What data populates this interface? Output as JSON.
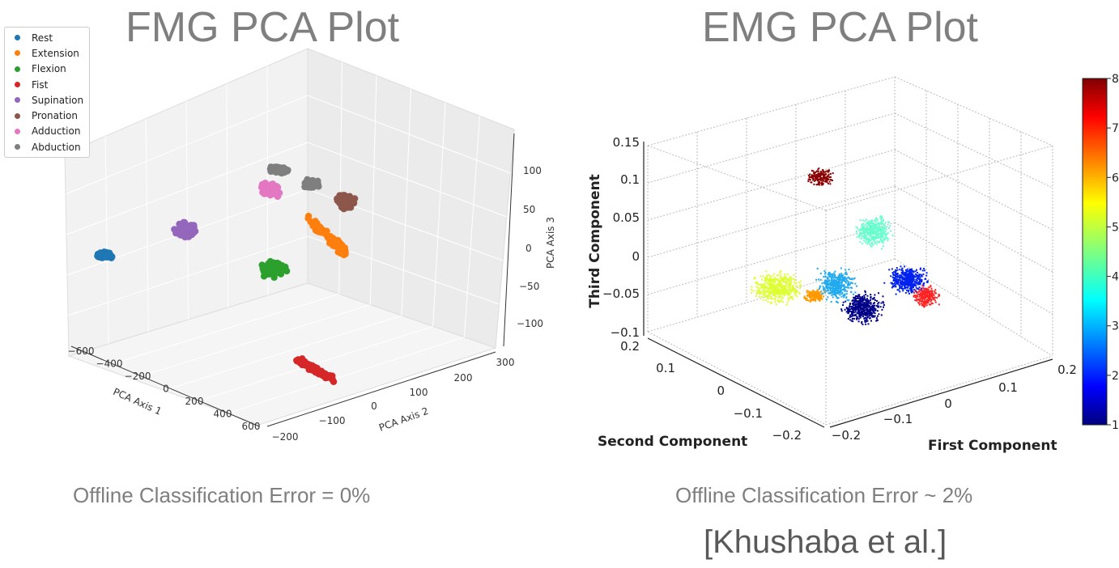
{
  "titles": {
    "left": "FMG PCA Plot",
    "right": "EMG PCA Plot"
  },
  "captions": {
    "left": "Offline Classification Error = 0%",
    "right": "Offline Classification Error ~ 2%",
    "citation": "[Khushaba et al.]"
  },
  "chart_data": [
    {
      "type": "scatter",
      "projection": "3d",
      "title": "FMG PCA Plot",
      "xlabel": "PCA Axis 1",
      "ylabel": "PCA Axis 2",
      "zlabel": "PCA Axis 3",
      "x_ticks": [
        "−600",
        "−400",
        "−200",
        "0",
        "200",
        "400",
        "600"
      ],
      "y_ticks": [
        "−200",
        "−100",
        "0",
        "100",
        "200",
        "300"
      ],
      "z_ticks": [
        "100",
        "50",
        "0",
        "−50",
        "−100"
      ],
      "legend_position": "top-left",
      "grid": true,
      "series": [
        {
          "name": "Rest",
          "color": "#1f77b4",
          "center": [
            -600,
            0,
            0
          ]
        },
        {
          "name": "Extension",
          "color": "#ff7f0e",
          "center": [
            300,
            150,
            10
          ]
        },
        {
          "name": "Flexion",
          "color": "#2ca02c",
          "center": [
            100,
            -50,
            -40
          ]
        },
        {
          "name": "Fist",
          "color": "#d62728",
          "center": [
            450,
            -150,
            -90
          ]
        },
        {
          "name": "Supination",
          "color": "#9467bd",
          "center": [
            -300,
            50,
            30
          ]
        },
        {
          "name": "Pronation",
          "color": "#8c564b",
          "center": [
            250,
            280,
            70
          ]
        },
        {
          "name": "Adduction",
          "color": "#e377c2",
          "center": [
            -100,
            150,
            80
          ]
        },
        {
          "name": "Abduction",
          "color": "#7f7f7f",
          "center": [
            0,
            250,
            110
          ]
        }
      ]
    },
    {
      "type": "scatter",
      "projection": "3d",
      "title": "EMG PCA Plot",
      "xlabel": "First Component",
      "ylabel": "Second Component",
      "zlabel": "Third Component",
      "x_ticks": [
        "−0.2",
        "−0.1",
        "0",
        "0.1",
        "0.2"
      ],
      "y_ticks": [
        "0.2",
        "0.1",
        "0",
        "−0.1",
        "−0.2"
      ],
      "z_ticks": [
        "0.15",
        "0.1",
        "0.05",
        "0",
        "−0.05",
        "−0.1"
      ],
      "colorbar": {
        "min": 1,
        "max": 8,
        "ticks": [
          "8",
          "7",
          "6",
          "5",
          "4",
          "3",
          "2",
          "1"
        ],
        "colormap": "jet"
      },
      "grid": true,
      "series": [
        {
          "label_value": 8,
          "color": "#8b0000",
          "center": [
            -0.05,
            0.15,
            0.1
          ]
        },
        {
          "label_value": 4,
          "color": "#66ffcc",
          "center": [
            0.05,
            0.0,
            0.03
          ]
        },
        {
          "label_value": 5,
          "color": "#ddff33",
          "center": [
            -0.15,
            0.1,
            -0.04
          ]
        },
        {
          "label_value": 3.5,
          "color": "#22aaee",
          "center": [
            -0.05,
            0.05,
            -0.04
          ]
        },
        {
          "label_value": 6,
          "color": "#ff9900",
          "center": [
            -0.08,
            0.05,
            -0.06
          ]
        },
        {
          "label_value": 2,
          "color": "#0022ee",
          "center": [
            0.08,
            -0.05,
            -0.03
          ]
        },
        {
          "label_value": 1,
          "color": "#000088",
          "center": [
            0.02,
            -0.05,
            -0.07
          ]
        },
        {
          "label_value": 7,
          "color": "#ff2222",
          "center": [
            0.12,
            -0.05,
            -0.05
          ]
        }
      ]
    }
  ]
}
